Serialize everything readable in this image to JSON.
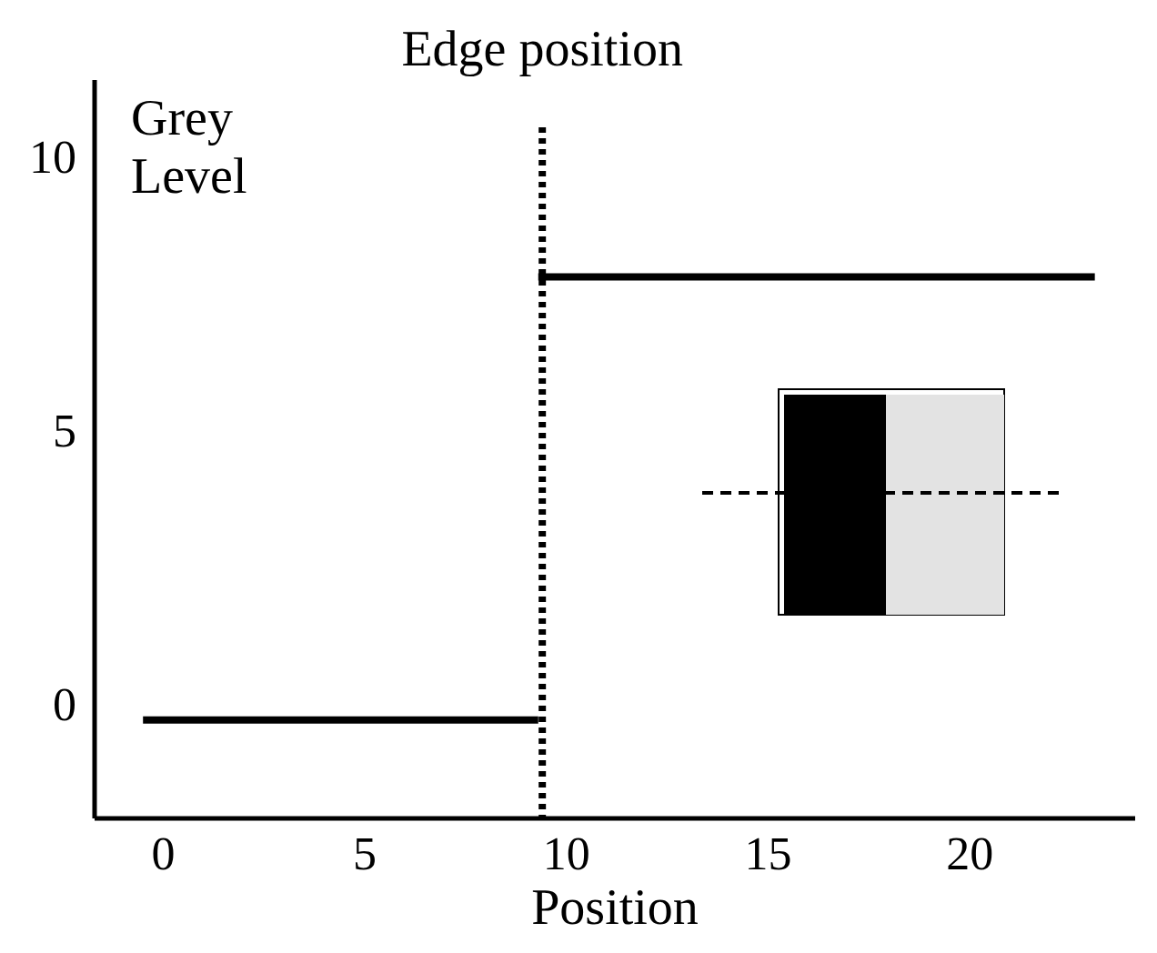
{
  "chart_data": {
    "type": "line",
    "xlabel": "Position",
    "ylabel": "Grey Level",
    "series": [
      {
        "color": "#000000",
        "x": [
          -0.5,
          9.3
        ],
        "values": [
          -0.3,
          -0.3
        ]
      },
      {
        "color": "#000000",
        "x": [
          9.3,
          23.1
        ],
        "values": [
          7.8,
          7.8
        ]
      }
    ],
    "xlim": [
      -1.7,
      24.1
    ],
    "xticks": [
      0,
      5,
      10,
      15,
      20
    ],
    "ylim": [
      -2.1,
      11.4
    ],
    "yticks": [
      0,
      5,
      10
    ],
    "ref_lines": [
      {
        "axis": "x",
        "value": 9.4,
        "label": "Edge position",
        "color": "#000000",
        "line_style": "dotted"
      }
    ],
    "grid": false,
    "marker": "none",
    "line_style": "solid"
  }
}
